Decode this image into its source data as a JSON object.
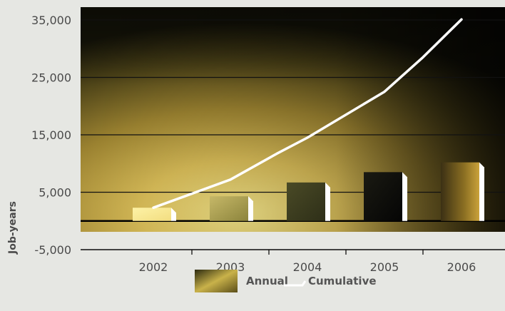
{
  "chart_data": {
    "type": "bar",
    "title": "",
    "xlabel": "",
    "ylabel": "Job-years",
    "categories": [
      "2002",
      "2003",
      "2004",
      "2005",
      "2006"
    ],
    "ylim": [
      -5000,
      35000
    ],
    "yticks": [
      -5000,
      5000,
      15000,
      25000,
      35000
    ],
    "ytick_labels": [
      "-5,000",
      "5,000",
      "15,000",
      "25,000",
      "35,000"
    ],
    "grid": true,
    "legend_position": "bottom-center",
    "series": [
      {
        "name": "Annual",
        "kind": "bar",
        "values": [
          2300,
          4300,
          6700,
          8500,
          10200
        ],
        "color": "#b89a38"
      },
      {
        "name": "Cumulative",
        "kind": "line",
        "points": [
          {
            "x": 2002,
            "y": 2300
          },
          {
            "x": 2003,
            "y": 7200
          },
          {
            "x": 2003.6,
            "y": 11700
          },
          {
            "x": 2004,
            "y": 14500
          },
          {
            "x": 2005,
            "y": 22500
          },
          {
            "x": 2005.5,
            "y": 28500
          },
          {
            "x": 2006,
            "y": 35100
          }
        ],
        "color": "#ffffff"
      }
    ]
  }
}
